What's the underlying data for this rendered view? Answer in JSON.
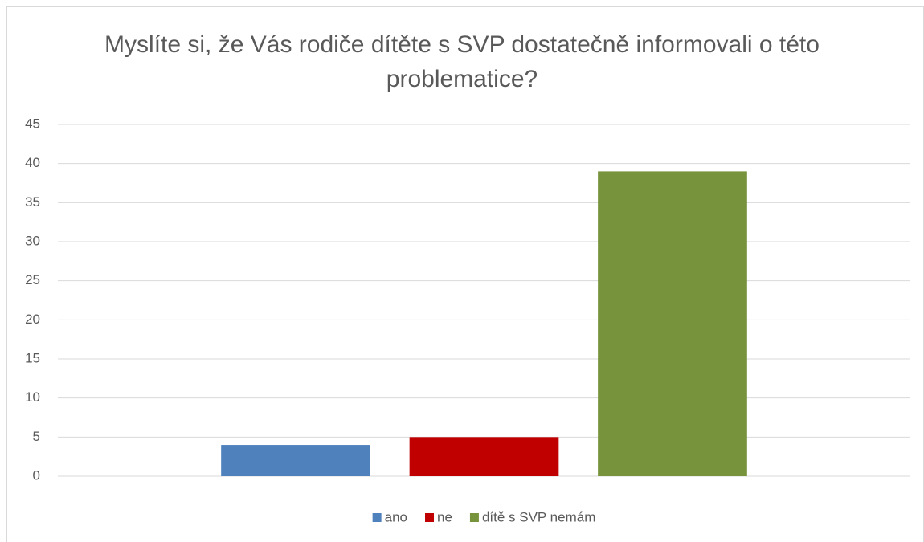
{
  "chart_data": {
    "type": "bar",
    "title": "Myslíte si, že Vás rodiče dítěte s SVP dostatečně informovali o této problematice?",
    "categories": [
      null
    ],
    "series": [
      {
        "name": "ano",
        "color": "#4f81bd",
        "values": [
          4
        ]
      },
      {
        "name": "ne",
        "color": "#c00000",
        "values": [
          5
        ]
      },
      {
        "name": "dítě s SVP nemám",
        "color": "#77933c",
        "values": [
          39
        ]
      }
    ],
    "ylim": [
      0,
      45
    ],
    "yticks": [
      0,
      5,
      10,
      15,
      20,
      25,
      30,
      35,
      40,
      45
    ],
    "grid": true,
    "legend": "bottom"
  }
}
